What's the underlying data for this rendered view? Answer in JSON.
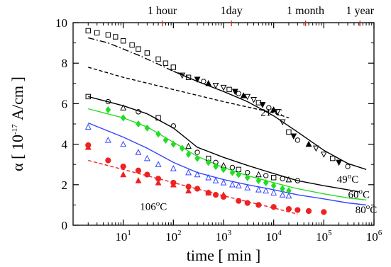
{
  "chart_data": {
    "type": "scatter",
    "x_scale": "log",
    "xlabel": "time  [ min ]",
    "ylabel_parts": [
      "α [ 10",
      "-17",
      " A/cm ]"
    ],
    "xlim": [
      1,
      1000000
    ],
    "ylim": [
      0,
      10
    ],
    "x_ticks": [
      {
        "value": 10,
        "base": "10",
        "exp": "1"
      },
      {
        "value": 100,
        "base": "10",
        "exp": "2"
      },
      {
        "value": 1000,
        "base": "10",
        "exp": "3"
      },
      {
        "value": 10000,
        "base": "10",
        "exp": "4"
      },
      {
        "value": 100000,
        "base": "10",
        "exp": "5"
      },
      {
        "value": 1000000,
        "base": "10",
        "exp": "6"
      }
    ],
    "y_ticks": [
      0,
      2,
      4,
      6,
      8,
      10
    ],
    "top_axis": [
      {
        "label": "1 hour",
        "x": 60
      },
      {
        "label": "1day",
        "x": 1440
      },
      {
        "label": "1 month",
        "x": 43200
      },
      {
        "label": "1 year",
        "x": 525600
      }
    ],
    "annotations": [
      {
        "base": "21",
        "sup": "o",
        "unit": "C",
        "x": 9000,
        "y": 5.4
      },
      {
        "base": "49",
        "sup": "o",
        "unit": "C",
        "x": 300000,
        "y": 2.1
      },
      {
        "base": "60",
        "sup": "o",
        "unit": "C",
        "x": 500000,
        "y": 1.35
      },
      {
        "base": "80",
        "sup": "o",
        "unit": "C",
        "x": 700000,
        "y": 0.6
      },
      {
        "base": "106",
        "sup": "o",
        "unit": "C",
        "x": 40,
        "y": 0.75
      }
    ],
    "series": [
      {
        "color": "#000000",
        "marker": "square-open",
        "x": [
          2,
          3,
          5,
          7,
          10,
          15,
          20,
          30,
          50,
          70,
          100
        ],
        "y": [
          9.6,
          9.5,
          9.4,
          9.3,
          9.1,
          8.9,
          8.7,
          8.5,
          8.2,
          8.0,
          7.8
        ]
      },
      {
        "color": "#000000",
        "marker": "mixed-21C",
        "x": [
          150,
          200,
          300,
          400,
          500,
          700,
          1000,
          1300,
          1700,
          2000,
          2500,
          3000,
          4000,
          5000,
          6000,
          8000,
          10000,
          12000,
          15000,
          20000,
          25000,
          30000,
          50000,
          70000,
          100000,
          150000,
          200000,
          300000
        ],
        "y": [
          7.4,
          7.3,
          7.2,
          7.1,
          7.0,
          6.9,
          6.8,
          6.7,
          6.6,
          6.5,
          6.4,
          6.35,
          6.2,
          6.05,
          5.95,
          5.8,
          5.7,
          5.6,
          5.1,
          4.6,
          4.4,
          4.2,
          4.0,
          3.8,
          3.5,
          3.3,
          3.1,
          2.9
        ]
      },
      {
        "color": "#000000",
        "marker": "mixed-49C",
        "x": [
          2,
          5,
          10,
          20,
          50,
          100,
          200,
          300,
          500,
          700,
          1000,
          1500,
          2000,
          3000,
          5000,
          7000,
          10000,
          15000,
          20000,
          30000
        ],
        "y": [
          6.35,
          6.1,
          5.8,
          5.6,
          5.3,
          4.9,
          3.9,
          3.6,
          3.3,
          3.1,
          2.95,
          2.85,
          2.75,
          2.6,
          2.5,
          2.45,
          2.35,
          2.3,
          2.25,
          2.2
        ]
      },
      {
        "color": "#22dd22",
        "marker": "diamond-filled",
        "x": [
          5,
          10,
          20,
          30,
          50,
          70,
          100,
          150,
          200,
          300,
          500,
          700,
          1000,
          1500,
          2000,
          3000,
          5000,
          7000,
          10000,
          15000,
          20000
        ],
        "y": [
          5.7,
          5.3,
          5.0,
          4.8,
          4.5,
          4.2,
          4.0,
          3.8,
          3.5,
          3.3,
          3.1,
          2.9,
          2.75,
          2.6,
          2.5,
          2.35,
          2.2,
          2.1,
          1.95,
          1.8,
          1.7
        ]
      },
      {
        "color": "#3344ff",
        "marker": "triangle-open",
        "x": [
          2,
          5,
          10,
          20,
          30,
          50,
          100,
          200,
          300,
          500,
          700,
          1000,
          1500,
          2000,
          3000,
          5000,
          7000,
          10000,
          15000,
          20000
        ],
        "y": [
          4.85,
          4.2,
          4.0,
          3.6,
          3.3,
          3.0,
          2.8,
          2.6,
          2.5,
          2.35,
          2.2,
          2.1,
          2.0,
          1.95,
          1.85,
          1.75,
          1.7,
          1.6,
          1.5,
          1.45
        ]
      },
      {
        "color": "#ee2222",
        "marker": "circle-filled",
        "x": [
          2,
          5,
          10,
          20,
          30,
          50,
          100,
          200,
          300,
          500,
          700,
          1000,
          2000,
          3000,
          5000,
          10000,
          20000,
          30000,
          50000,
          100000
        ],
        "y": [
          3.95,
          3.2,
          2.9,
          2.7,
          2.5,
          2.3,
          2.1,
          1.9,
          1.8,
          1.6,
          1.5,
          1.4,
          1.2,
          1.1,
          1.0,
          0.9,
          0.8,
          0.75,
          0.7,
          0.65
        ]
      },
      {
        "color": "#ee2222",
        "marker": "triangle-filled",
        "x": [
          2,
          10,
          20,
          50,
          100,
          200,
          500,
          1000
        ],
        "y": [
          3.85,
          2.5,
          2.2,
          2.1,
          2.0,
          1.7,
          1.6,
          1.5
        ]
      }
    ],
    "fit_lines": [
      {
        "color": "#000000",
        "dash": "dashdot",
        "x": [
          2,
          5,
          10,
          20,
          50,
          100,
          200
        ],
        "y": [
          9.25,
          9.0,
          8.7,
          8.4,
          7.95,
          7.6,
          7.35
        ]
      },
      {
        "color": "#000000",
        "dash": "solid",
        "x": [
          100,
          300,
          1000,
          3000,
          10000,
          30000,
          100000,
          300000,
          700000
        ],
        "y": [
          7.6,
          7.1,
          6.6,
          6.1,
          5.4,
          4.6,
          3.7,
          3.05,
          2.75
        ]
      },
      {
        "color": "#000000",
        "dash": "dashed",
        "x": [
          2,
          10,
          100,
          1000,
          10000,
          20000
        ],
        "y": [
          7.8,
          7.3,
          6.7,
          6.1,
          5.55,
          5.3
        ]
      },
      {
        "color": "#000000",
        "dash": "solid",
        "x": [
          2,
          10,
          30,
          100,
          300,
          1000,
          3000,
          10000,
          30000,
          100000,
          300000,
          500000
        ],
        "y": [
          6.35,
          5.9,
          5.5,
          4.8,
          3.85,
          3.35,
          2.95,
          2.55,
          2.2,
          1.95,
          1.75,
          1.65
        ]
      },
      {
        "color": "#22dd22",
        "dash": "solid",
        "x": [
          2,
          10,
          30,
          100,
          300,
          1000,
          3000,
          10000,
          30000,
          100000,
          300000,
          700000
        ],
        "y": [
          5.75,
          5.3,
          4.85,
          4.1,
          3.4,
          2.85,
          2.45,
          2.1,
          1.8,
          1.55,
          1.35,
          1.25
        ]
      },
      {
        "color": "#3344ff",
        "dash": "solid",
        "x": [
          2,
          10,
          30,
          100,
          300,
          1000,
          3000,
          10000,
          30000,
          100000,
          300000,
          700000
        ],
        "y": [
          5.05,
          4.35,
          3.8,
          3.1,
          2.6,
          2.25,
          2.0,
          1.75,
          1.5,
          1.3,
          1.1,
          1.0
        ]
      },
      {
        "color": "#ee2222",
        "dash": "dashed",
        "x": [
          2,
          10,
          100,
          1000,
          10000,
          30000
        ],
        "y": [
          3.2,
          2.75,
          2.1,
          1.45,
          0.85,
          0.55
        ]
      }
    ]
  }
}
